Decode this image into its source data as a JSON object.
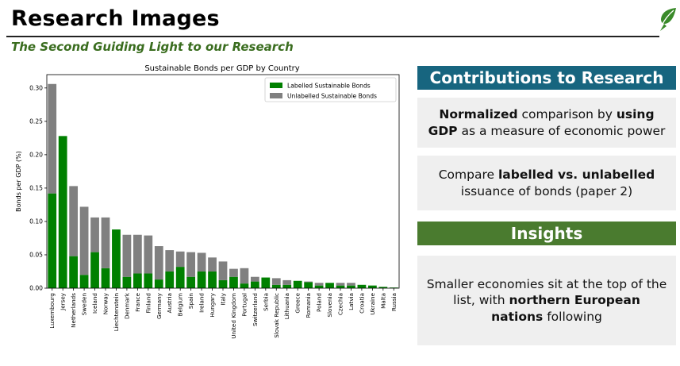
{
  "header": {
    "title": "Research Images",
    "subtitle": "The Second Guiding Light to our Research"
  },
  "colors": {
    "labelled": "#008000",
    "unlabelled": "#808080",
    "contributions_banner": "#17657f",
    "insights_banner": "#4a7b2f",
    "subtitle": "#3a6d1f",
    "logo": "#3a8a2a"
  },
  "logo": {
    "icon": "leaf-logo-icon"
  },
  "chart_data": {
    "type": "bar",
    "stacked": true,
    "title": "Sustainable Bonds per GDP by Country",
    "xlabel": "",
    "ylabel": "Bonds per GDP (%)",
    "ylim": [
      0,
      0.32
    ],
    "yticks": [
      "0.00",
      "0.05",
      "0.10",
      "0.15",
      "0.20",
      "0.25",
      "0.30"
    ],
    "legend_position": "top-right",
    "grid": false,
    "categories": [
      "Luxembourg",
      "Jersey",
      "Netherlands",
      "Sweden",
      "Iceland",
      "Norway",
      "Liechtenstein",
      "Denmark",
      "France",
      "Finland",
      "Germany",
      "Austria",
      "Belgium",
      "Spain",
      "Ireland",
      "Hungary",
      "Italy",
      "United Kingdom",
      "Portugal",
      "Switzerland",
      "Serbia",
      "Slovak Republic",
      "Lithuania",
      "Greece",
      "Romania",
      "Poland",
      "Slovenia",
      "Czechia",
      "Latvia",
      "Croatia",
      "Ukraine",
      "Malta",
      "Russia"
    ],
    "series": [
      {
        "name": "Labelled Sustainable Bonds",
        "values": [
          0.142,
          0.228,
          0.048,
          0.02,
          0.054,
          0.03,
          0.088,
          0.017,
          0.022,
          0.022,
          0.013,
          0.025,
          0.032,
          0.017,
          0.025,
          0.025,
          0.012,
          0.017,
          0.007,
          0.01,
          0.016,
          0.005,
          0.005,
          0.011,
          0.009,
          0.004,
          0.008,
          0.004,
          0.004,
          0.005,
          0.004,
          0.002,
          0.001
        ]
      },
      {
        "name": "Unlabelled Sustainable Bonds",
        "values": [
          0.164,
          0.0,
          0.105,
          0.102,
          0.052,
          0.076,
          0.0,
          0.063,
          0.058,
          0.057,
          0.05,
          0.032,
          0.023,
          0.037,
          0.028,
          0.021,
          0.028,
          0.012,
          0.023,
          0.007,
          0.0,
          0.01,
          0.007,
          0.0,
          0.001,
          0.004,
          0.0,
          0.004,
          0.004,
          0.0,
          0.0,
          0.0,
          0.0
        ]
      }
    ]
  },
  "contributions": {
    "title": "Contributions to Research",
    "item1": {
      "b1": "Normalized",
      "t1": " comparison by ",
      "b2": "using GDP",
      "t2": " as a measure of economic power"
    },
    "item2": {
      "t1": "Compare ",
      "b1": "labelled vs. unlabelled",
      "t2": " issuance of bonds (paper 2)"
    }
  },
  "insights": {
    "title": "Insights",
    "item1": {
      "t1": "Smaller economies sit at the top of the list, with ",
      "b1": "northern European nations",
      "t2": " following"
    }
  }
}
